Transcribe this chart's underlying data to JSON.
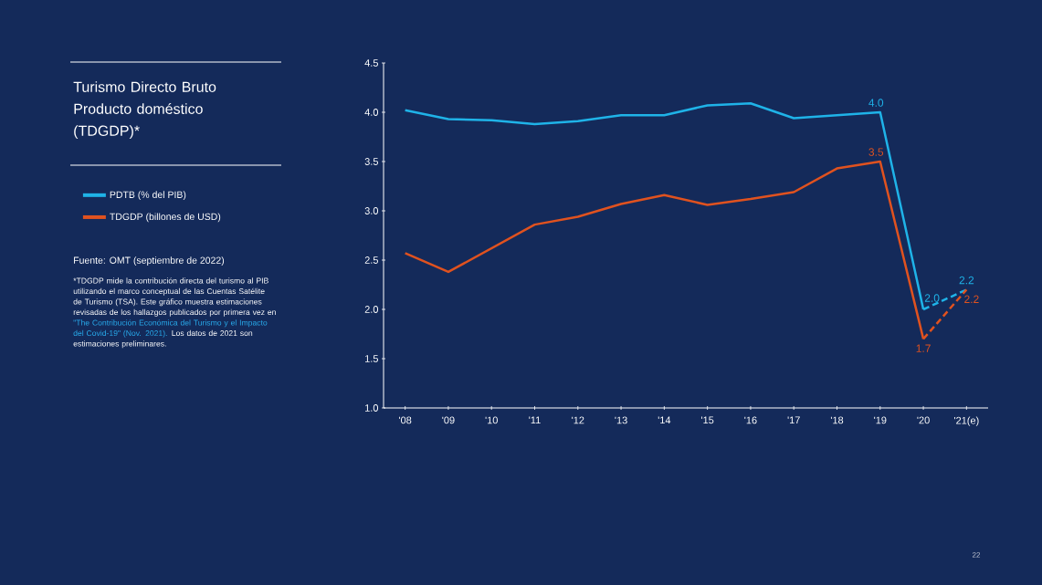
{
  "chart_data": {
    "type": "line",
    "title": "Turismo Directo Bruto Producto doméstico (TDGDP)*",
    "categories": [
      "'08",
      "'09",
      "'10",
      "'11",
      "'12",
      "'13",
      "'14",
      "'15",
      "'16",
      "'17",
      "'18",
      "'19",
      "'20",
      "'21(e)"
    ],
    "series": [
      {
        "name": "PDTB (% del PIB)",
        "color": "#1fb3e8",
        "line_style": "solid",
        "values": [
          4.02,
          3.93,
          3.92,
          3.88,
          3.91,
          3.97,
          3.97,
          4.07,
          4.09,
          3.94,
          3.97,
          4.0,
          2.0,
          null
        ],
        "value_labels": [
          null,
          null,
          null,
          null,
          null,
          null,
          null,
          null,
          null,
          null,
          null,
          "4.0",
          "2.0",
          null
        ]
      },
      {
        "color": "#1fb3e8",
        "line_style": "dashed",
        "values": [
          null,
          null,
          null,
          null,
          null,
          null,
          null,
          null,
          null,
          null,
          null,
          null,
          2.0,
          2.2
        ],
        "value_labels": [
          null,
          null,
          null,
          null,
          null,
          null,
          null,
          null,
          null,
          null,
          null,
          null,
          null,
          "2.2"
        ]
      },
      {
        "name": "TDGDP (billones de USD)",
        "color": "#e0521f",
        "line_style": "solid",
        "values": [
          2.57,
          2.38,
          2.62,
          2.86,
          2.94,
          3.07,
          3.16,
          3.06,
          3.12,
          3.19,
          3.43,
          3.5,
          1.7,
          null
        ],
        "value_labels": [
          null,
          null,
          null,
          null,
          null,
          null,
          null,
          null,
          null,
          null,
          null,
          "3.5",
          "1.7",
          null
        ]
      },
      {
        "color": "#e0521f",
        "line_style": "dashed",
        "values": [
          null,
          null,
          null,
          null,
          null,
          null,
          null,
          null,
          null,
          null,
          null,
          null,
          1.7,
          2.2
        ],
        "value_labels": [
          null,
          null,
          null,
          null,
          null,
          null,
          null,
          null,
          null,
          null,
          null,
          null,
          null,
          "2.2"
        ]
      }
    ],
    "ylim": [
      1.0,
      4.5
    ],
    "yticks": [
      {
        "value": 1.0,
        "label": "1.0"
      },
      {
        "value": 1.5,
        "label": "1.5"
      },
      {
        "value": 2.0,
        "label": "2.0"
      },
      {
        "value": 2.5,
        "label": "2.5"
      },
      {
        "value": 3.0,
        "label": "3.0"
      },
      {
        "value": 3.5,
        "label": "3.5"
      },
      {
        "value": 4.0,
        "label": "4.0"
      },
      {
        "value": 4.5,
        "label": "4.5"
      }
    ],
    "legend": "left",
    "marker": "none",
    "annotations": [
      "Fuente: OMT (septiembre de 2022)",
      "*TDGDP mide la contribución directa del turismo al PIB utilizando el marco conceptual de las Cuentas Satélite de Turismo (TSA). Este gráfico muestra estimaciones revisadas de los hallazgos publicados por primera vez en",
      "\"The Contribución Económica del Turismo y el Impacto del Covid-19\" (Nov. 2021).",
      "Los datos de 2021 son estimaciones preliminares.",
      "22"
    ]
  }
}
